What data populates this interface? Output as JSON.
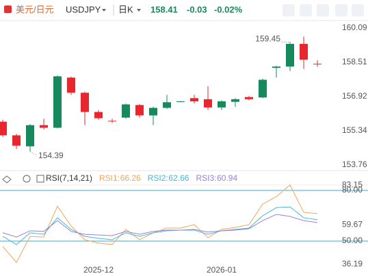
{
  "header": {
    "name": "美元/日元",
    "symbol": "USDJPY",
    "period": "日K",
    "price": "158.41",
    "change": "-0.03",
    "change_pct": "-0.02%"
  },
  "chart_data": [
    {
      "type": "candlestick",
      "categories": [
        null,
        null,
        null,
        null,
        null,
        null,
        null,
        "2025-12",
        null,
        null,
        null,
        null,
        null,
        null,
        null,
        null,
        "2026-01",
        null,
        null,
        null,
        null,
        null,
        null,
        null
      ],
      "open": [
        155.76,
        155.13,
        154.62,
        155.6,
        155.48,
        157.8,
        157.1,
        156.21,
        155.8,
        155.95,
        156.53,
        156.05,
        156.4,
        156.69,
        156.85,
        156.8,
        156.42,
        156.68,
        156.9,
        156.88,
        158.25,
        158.31,
        159.36,
        158.44
      ],
      "high": [
        155.85,
        155.2,
        155.65,
        155.9,
        157.9,
        157.85,
        157.15,
        156.3,
        155.9,
        156.6,
        156.58,
        156.45,
        157.0,
        156.72,
        157.0,
        157.4,
        156.75,
        156.85,
        156.95,
        157.75,
        158.35,
        159.45,
        159.7,
        158.6
      ],
      "low": [
        155.05,
        154.5,
        154.39,
        155.4,
        155.45,
        157.0,
        155.6,
        155.85,
        155.7,
        155.9,
        155.95,
        155.6,
        156.35,
        156.66,
        156.6,
        156.3,
        156.3,
        156.45,
        156.75,
        156.85,
        157.8,
        158.1,
        158.2,
        158.3
      ],
      "close": [
        155.13,
        154.65,
        155.6,
        155.48,
        157.86,
        157.1,
        156.21,
        155.92,
        155.8,
        156.56,
        156.05,
        156.4,
        156.66,
        156.7,
        156.7,
        156.42,
        156.7,
        156.8,
        156.8,
        157.7,
        158.31,
        159.36,
        158.63,
        158.41
      ],
      "up_color": "#168a5c",
      "down_color": "#e8262d",
      "ylim": [
        153.5,
        160.44
      ],
      "yticks": [
        153.76,
        155.34,
        156.92,
        158.51,
        160.09
      ],
      "annotations": [
        154.39,
        159.45
      ]
    },
    {
      "type": "line",
      "title": "RSI(7,14,21)",
      "series": [
        {
          "name": "RSI1",
          "color": "#f5a35b",
          "values": [
            46.8,
            37.4,
            52.8,
            52.4,
            70.6,
            58.9,
            50.8,
            48.8,
            48.0,
            56.9,
            50.8,
            54.9,
            57.7,
            57.7,
            59.7,
            52.0,
            56.9,
            58.1,
            59.7,
            71.9,
            76.3,
            83.2,
            67.0,
            66.26
          ]
        },
        {
          "name": "RSI2",
          "color": "#45b8d6",
          "values": [
            52.8,
            47.9,
            54.9,
            54.0,
            63.8,
            56.9,
            52.8,
            51.6,
            50.8,
            54.9,
            52.8,
            54.9,
            56.1,
            56.5,
            56.5,
            54.0,
            56.1,
            56.9,
            57.7,
            65.0,
            69.8,
            70.2,
            63.8,
            62.66
          ]
        },
        {
          "name": "RSI3",
          "color": "#9b7fd6",
          "values": [
            54.9,
            52.4,
            56.1,
            55.7,
            62.1,
            55.7,
            54.0,
            53.6,
            53.2,
            55.7,
            54.0,
            55.7,
            56.5,
            56.5,
            56.9,
            55.3,
            56.1,
            56.5,
            57.3,
            62.1,
            65.8,
            64.6,
            62.1,
            60.94
          ]
        }
      ],
      "ylim": [
        33.78,
        83.24
      ],
      "yticks": [
        36.19,
        {
          "value": 50,
          "label": "50.00"
        },
        59.67,
        {
          "value": 80,
          "label": "80.00"
        },
        83.15
      ],
      "reference_lines": [
        50,
        80
      ],
      "reference_color": "#3aaed8"
    }
  ]
}
